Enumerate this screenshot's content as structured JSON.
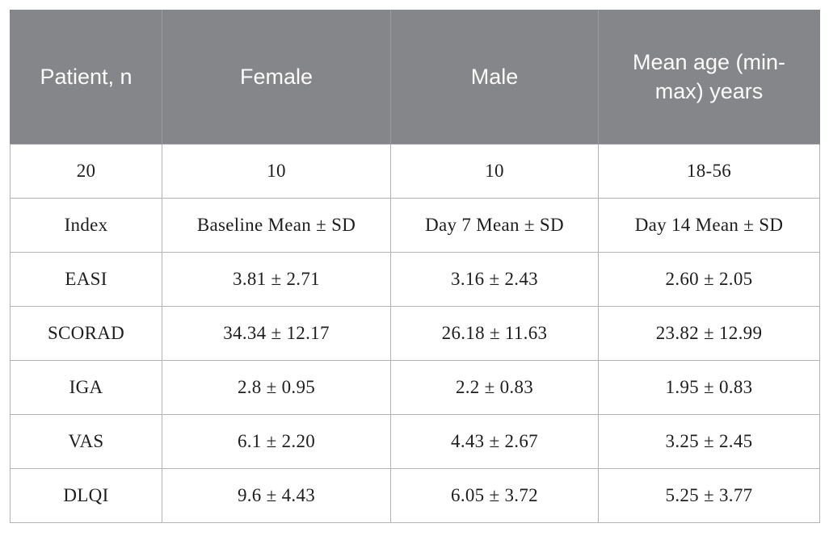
{
  "table": {
    "description": "Patient demographics and disease severity indices (Mean ± SD) at baseline, day 7 and day 14",
    "colors": {
      "header_background": "#858689",
      "header_text": "#fbfbfb",
      "body_text": "#1e1e1e",
      "grid_border": "#b3b3b3"
    },
    "header": {
      "col0": "Patient, n",
      "col1": "Female",
      "col2": "Male",
      "col3": "Mean age (min-max) years"
    },
    "rows": [
      [
        "20",
        "10",
        "10",
        "18-56"
      ],
      [
        "Index",
        "Baseline Mean ± SD",
        "Day 7 Mean ± SD",
        "Day 14 Mean ± SD"
      ],
      [
        "EASI",
        "3.81 ± 2.71",
        "3.16 ± 2.43",
        "2.60 ± 2.05"
      ],
      [
        "SCORAD",
        "34.34 ± 12.17",
        "26.18 ± 11.63",
        "23.82 ± 12.99"
      ],
      [
        "IGA",
        "2.8 ± 0.95",
        "2.2 ± 0.83",
        "1.95 ± 0.83"
      ],
      [
        "VAS",
        "6.1 ± 2.20",
        "4.43 ± 2.67",
        "3.25 ± 2.45"
      ],
      [
        "DLQI",
        "9.6 ± 4.43",
        "6.05 ± 3.72",
        "5.25 ± 3.77"
      ]
    ]
  }
}
